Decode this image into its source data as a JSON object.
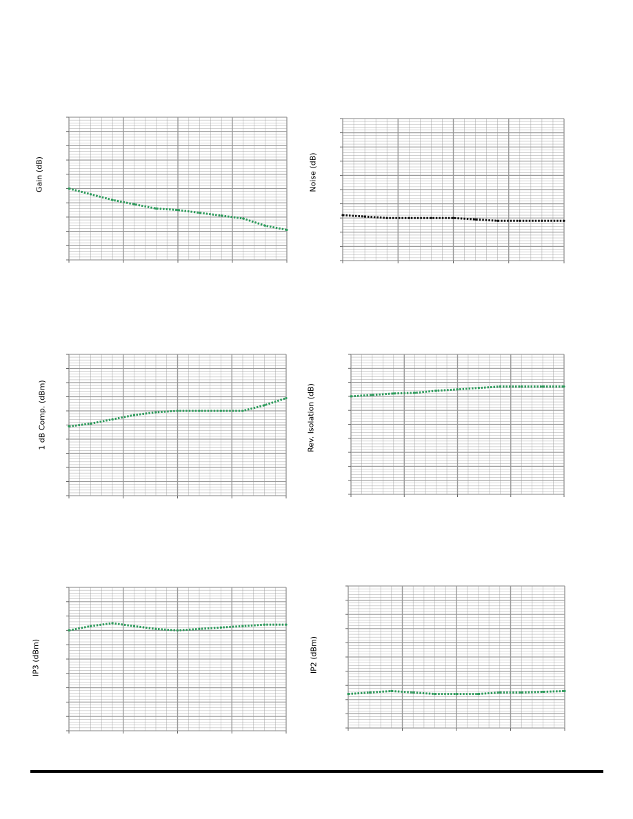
{
  "colors": {
    "grid": "#9a9a9a",
    "green": "#2e9b5c",
    "black": "#111111"
  },
  "chart_data": [
    {
      "type": "line",
      "ylabel": "Gain (dB)",
      "grid": true,
      "xlim": [
        0,
        10
      ],
      "ylim": [
        0,
        10
      ],
      "series": [
        {
          "color": "green",
          "x": [
            0,
            1,
            2,
            3,
            4,
            5,
            6,
            7,
            8,
            9,
            10
          ],
          "y": [
            5.0,
            4.6,
            4.2,
            3.9,
            3.6,
            3.5,
            3.3,
            3.1,
            2.9,
            2.4,
            2.1
          ]
        }
      ]
    },
    {
      "type": "line",
      "ylabel": "Noise (dB)",
      "grid": true,
      "xlim": [
        0,
        10
      ],
      "ylim": [
        0,
        10
      ],
      "series": [
        {
          "color": "black",
          "x": [
            0,
            1,
            2,
            3,
            4,
            5,
            6,
            7,
            8,
            9,
            10
          ],
          "y": [
            3.2,
            3.1,
            3.0,
            3.0,
            3.0,
            3.0,
            2.9,
            2.8,
            2.8,
            2.8,
            2.8
          ]
        }
      ]
    },
    {
      "type": "line",
      "ylabel": "1 dB Comp. (dBm)",
      "grid": true,
      "xlim": [
        0,
        10
      ],
      "ylim": [
        0,
        10
      ],
      "series": [
        {
          "color": "green",
          "x": [
            0,
            1,
            2,
            3,
            4,
            5,
            6,
            7,
            8,
            9,
            10
          ],
          "y": [
            4.9,
            5.1,
            5.4,
            5.7,
            5.9,
            6.0,
            6.0,
            6.0,
            6.0,
            6.4,
            6.9
          ]
        }
      ]
    },
    {
      "type": "line",
      "ylabel": "Rev. Isolation (dB)",
      "grid": true,
      "xlim": [
        0,
        10
      ],
      "ylim": [
        0,
        10
      ],
      "series": [
        {
          "color": "green",
          "x": [
            0,
            1,
            2,
            3,
            4,
            5,
            6,
            7,
            8,
            9,
            10
          ],
          "y": [
            7.0,
            7.1,
            7.2,
            7.25,
            7.4,
            7.5,
            7.6,
            7.7,
            7.7,
            7.7,
            7.7
          ]
        }
      ]
    },
    {
      "type": "line",
      "ylabel": "IP3 (dBm)",
      "grid": true,
      "xlim": [
        0,
        10
      ],
      "ylim": [
        0,
        10
      ],
      "series": [
        {
          "color": "green",
          "x": [
            0,
            1,
            2,
            3,
            4,
            5,
            6,
            7,
            8,
            9,
            10
          ],
          "y": [
            7.0,
            7.3,
            7.5,
            7.3,
            7.1,
            7.0,
            7.1,
            7.2,
            7.3,
            7.4,
            7.4
          ]
        }
      ]
    },
    {
      "type": "line",
      "ylabel": "IP2 (dBm)",
      "grid": true,
      "xlim": [
        0,
        10
      ],
      "ylim": [
        0,
        10
      ],
      "series": [
        {
          "color": "green",
          "x": [
            0,
            1,
            2,
            3,
            4,
            5,
            6,
            7,
            8,
            9,
            10
          ],
          "y": [
            2.4,
            2.5,
            2.6,
            2.5,
            2.4,
            2.4,
            2.4,
            2.5,
            2.5,
            2.55,
            2.6
          ]
        }
      ]
    }
  ]
}
